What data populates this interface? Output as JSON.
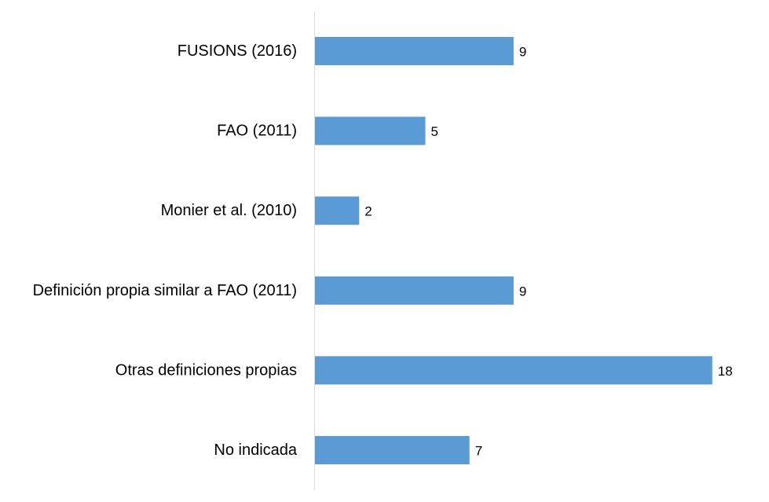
{
  "chart_data": {
    "type": "bar",
    "orientation": "horizontal",
    "categories": [
      "FUSIONS (2016)",
      "FAO (2011)",
      "Monier et al. (2010)",
      "Definición propia similar a FAO (2011)",
      "Otras definiciones propias",
      "No indicada"
    ],
    "values": [
      9,
      5,
      2,
      9,
      18,
      7
    ],
    "xlim": [
      0,
      20
    ],
    "grid": false,
    "legend": "none",
    "data_labels": true,
    "bar_color": "#5b9bd5",
    "axis_color": "#d9d9d9"
  }
}
